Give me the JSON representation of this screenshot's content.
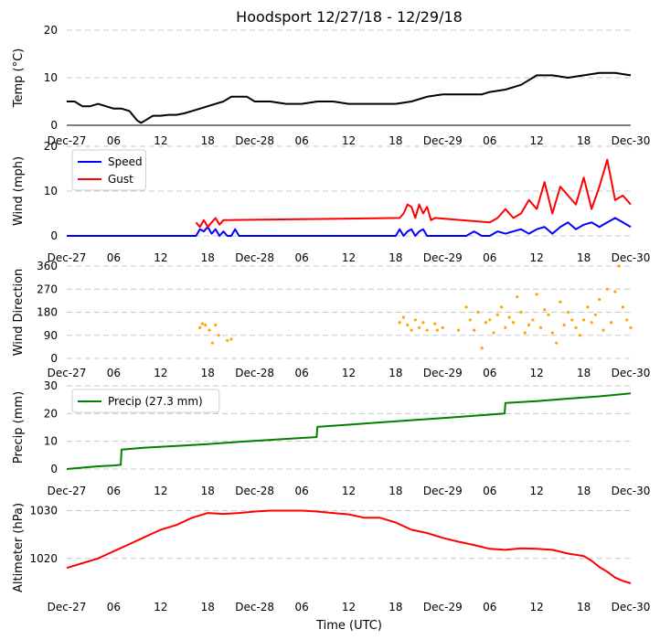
{
  "title": "Hoodsport 12/27/18 - 12/29/18",
  "xlabel": "Time (UTC)",
  "x_ticks": [
    "Dec-27",
    "06",
    "12",
    "18",
    "Dec-28",
    "06",
    "12",
    "18",
    "Dec-29",
    "06",
    "12",
    "18",
    "Dec-30"
  ],
  "x_range_hours": [
    0,
    72
  ],
  "chart_data": [
    {
      "type": "line",
      "ylabel": "Temp (°C)",
      "ylim": [
        0,
        20
      ],
      "yticks": [
        "0",
        "10",
        "20"
      ],
      "grid": true,
      "series": [
        {
          "color": "#000000",
          "x": [
            0,
            1,
            2,
            3,
            4,
            5,
            6,
            7,
            8,
            8.5,
            9,
            9.5,
            10,
            11,
            12,
            13,
            14,
            15,
            16,
            17,
            18,
            19,
            20,
            21,
            22,
            23,
            24,
            26,
            28,
            30,
            32,
            34,
            36,
            38,
            40,
            42,
            44,
            46,
            48,
            50,
            51,
            52,
            53,
            54,
            56,
            58,
            60,
            62,
            64,
            66,
            68,
            70,
            72
          ],
          "y": [
            5,
            5,
            4,
            4,
            4.5,
            4,
            3.5,
            3.5,
            3,
            2,
            1,
            0.5,
            1,
            2,
            2,
            2.2,
            2.2,
            2.5,
            3,
            3.5,
            4,
            4.5,
            5,
            6,
            6,
            6,
            5,
            5,
            4.5,
            4.5,
            5,
            5,
            4.5,
            4.5,
            4.5,
            4.5,
            5,
            6,
            6.5,
            6.5,
            6.5,
            6.5,
            6.5,
            7,
            7.5,
            8.5,
            10.5,
            10.5,
            10,
            10.5,
            11,
            11,
            10.5
          ]
        }
      ]
    },
    {
      "type": "line",
      "ylabel": "Wind (mph)",
      "ylim": [
        0,
        20
      ],
      "yticks": [
        "0",
        "10",
        "20"
      ],
      "grid": true,
      "legend": "top-left",
      "series": [
        {
          "name": "Speed",
          "color": "#0000ff",
          "x": [
            0,
            16.5,
            17,
            17.5,
            18,
            18.5,
            19,
            19.5,
            20,
            20.5,
            21,
            21.5,
            22,
            30,
            40,
            42,
            42.5,
            43,
            43.5,
            44,
            44.5,
            45,
            45.5,
            46,
            47,
            48,
            49,
            50,
            51,
            52,
            53,
            54,
            55,
            56,
            57,
            58,
            59,
            60,
            61,
            62,
            63,
            64,
            65,
            66,
            67,
            68,
            69,
            70,
            71,
            72
          ],
          "y": [
            0,
            0,
            1.5,
            1,
            2,
            0.5,
            1.5,
            0,
            1,
            0,
            0,
            1.5,
            0,
            0,
            0,
            0,
            1.5,
            0,
            1,
            1.5,
            0,
            1,
            1.5,
            0,
            0,
            0,
            0,
            0,
            0,
            1,
            0,
            0,
            1,
            0.5,
            1,
            1.5,
            0.5,
            1.5,
            2,
            0.5,
            2,
            3,
            1.5,
            2.5,
            3,
            2,
            3,
            4,
            3,
            2
          ]
        },
        {
          "name": "Gust",
          "color": "#ff0000",
          "x": [
            16.5,
            17,
            17.5,
            18,
            18.5,
            19,
            19.5,
            20,
            42.5,
            43,
            43.5,
            44,
            44.5,
            45,
            45.5,
            46,
            46.5,
            47,
            54,
            55,
            56,
            57,
            58,
            59,
            60,
            61,
            62,
            63,
            64,
            65,
            66,
            67,
            68,
            69,
            70,
            71,
            72
          ],
          "y": [
            3,
            2,
            3.5,
            2,
            3,
            4,
            2.5,
            3.5,
            4,
            5,
            7,
            6.5,
            4,
            7,
            5,
            6.5,
            3.5,
            4,
            3,
            4,
            6,
            4,
            5,
            8,
            6,
            12,
            5,
            11,
            9,
            7,
            13,
            6,
            11,
            17,
            8,
            9,
            7
          ]
        }
      ]
    },
    {
      "type": "scatter",
      "ylabel": "Wind Direction",
      "ylim": [
        0,
        360
      ],
      "yticks": [
        "0",
        "90",
        "180",
        "270",
        "360"
      ],
      "grid": true,
      "series": [
        {
          "color": "#ffa500",
          "x": [
            17,
            17.3,
            17.7,
            18.2,
            18.6,
            19,
            19.4,
            20.5,
            21,
            42.5,
            43,
            43.5,
            44,
            44.5,
            45,
            45.5,
            46,
            47,
            47.3,
            48,
            50,
            51,
            51.5,
            52,
            52.5,
            53,
            53.5,
            54,
            54.5,
            55,
            55.5,
            56,
            56.5,
            57,
            57.5,
            58,
            58.5,
            59,
            59.5,
            60,
            60.5,
            61,
            61.5,
            62,
            62.5,
            63,
            63.5,
            64,
            64.5,
            65,
            65.5,
            66,
            66.5,
            67,
            67.5,
            68,
            68.5,
            69,
            69.5,
            70,
            70.5,
            71,
            71.5,
            72
          ],
          "y": [
            120,
            135,
            130,
            110,
            60,
            130,
            90,
            70,
            75,
            140,
            160,
            130,
            110,
            150,
            120,
            140,
            110,
            135,
            110,
            120,
            110,
            200,
            150,
            110,
            180,
            40,
            140,
            150,
            100,
            170,
            200,
            120,
            160,
            140,
            240,
            180,
            100,
            130,
            150,
            250,
            120,
            190,
            170,
            100,
            60,
            220,
            130,
            180,
            150,
            120,
            90,
            150,
            200,
            140,
            170,
            230,
            110,
            270,
            140,
            260,
            360,
            200,
            150,
            120
          ]
        }
      ]
    },
    {
      "type": "line",
      "ylabel": "Precip (mm)",
      "ylim": [
        0,
        30
      ],
      "yticks": [
        "0",
        "10",
        "20",
        "30"
      ],
      "grid": true,
      "legend": "top-left",
      "series": [
        {
          "name": "Precip (27.3 mm)",
          "color": "#008000",
          "x": [
            0,
            2,
            4,
            6,
            6.9,
            7,
            10,
            14,
            18,
            22,
            26,
            30,
            31.9,
            32,
            36,
            40,
            44,
            48,
            50,
            52,
            54,
            55.9,
            56,
            60,
            64,
            68,
            72
          ],
          "y": [
            0,
            0.5,
            1,
            1.3,
            1.5,
            7,
            7.7,
            8.3,
            9,
            9.8,
            10.5,
            11.2,
            11.5,
            15.2,
            16,
            16.8,
            17.6,
            18.4,
            18.8,
            19.2,
            19.6,
            20,
            23.8,
            24.5,
            25.4,
            26.2,
            27.3
          ]
        }
      ]
    },
    {
      "type": "line",
      "ylabel": "Altimeter (hPa)",
      "ylim": [
        1012.5,
        1032
      ],
      "yticks": [
        "1020",
        "1030"
      ],
      "grid": true,
      "series": [
        {
          "color": "#ff0000",
          "x": [
            0,
            2,
            4,
            6,
            8,
            10,
            12,
            14,
            16,
            18,
            20,
            22,
            24,
            26,
            28,
            30,
            32,
            34,
            36,
            38,
            40,
            42,
            44,
            46,
            48,
            50,
            52,
            54,
            56,
            58,
            60,
            62,
            64,
            66,
            67,
            68,
            69,
            70,
            71,
            72
          ],
          "y": [
            1018,
            1019,
            1020,
            1021.5,
            1023,
            1024.5,
            1026,
            1027,
            1028.5,
            1029.5,
            1029.3,
            1029.5,
            1029.8,
            1030,
            1030,
            1030,
            1029.8,
            1029.5,
            1029.2,
            1028.5,
            1028.5,
            1027.5,
            1026,
            1025.3,
            1024.3,
            1023.5,
            1022.8,
            1022,
            1021.8,
            1022.1,
            1022,
            1021.8,
            1021,
            1020.5,
            1019.5,
            1018.2,
            1017.2,
            1016,
            1015.3,
            1014.8
          ]
        }
      ]
    }
  ]
}
